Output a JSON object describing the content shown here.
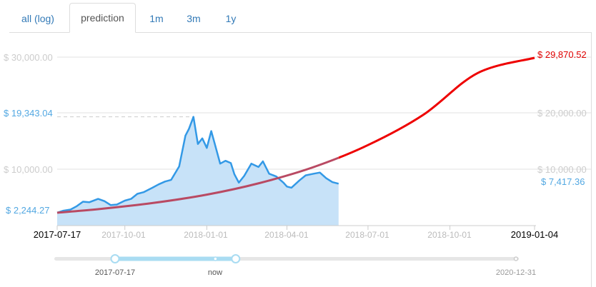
{
  "tabs": [
    {
      "label": "all (log)",
      "active": false
    },
    {
      "label": "prediction",
      "active": true
    },
    {
      "label": "1m",
      "active": false
    },
    {
      "label": "3m",
      "active": false
    },
    {
      "label": "1y",
      "active": false
    }
  ],
  "colors": {
    "accent": "#337ab7",
    "price_line": "#3399e6",
    "price_fill": "#c7e2f8",
    "prediction_line": "#ee0000",
    "prediction_overlap": "#b94a63",
    "max_dash": "#cccccc"
  },
  "chart_data": {
    "type": "line",
    "x_axis": {
      "ticks": [
        "2017-07-17",
        "2017-10-01",
        "2018-01-01",
        "2018-04-01",
        "2018-07-01",
        "2018-10-01",
        "2019-01-04"
      ],
      "range": [
        "2017-07-17",
        "2019-01-04"
      ]
    },
    "y_axis": {
      "left_ticks": [
        "$ 30,000.00",
        "$ 10,000.00"
      ],
      "right_ticks": [
        "$ 20,000.00",
        "$ 10,000.00"
      ],
      "range": [
        0,
        32000
      ]
    },
    "annotations": {
      "max_value": "$ 19,343.04",
      "start_value": "$ 2,244.27",
      "current_value": "$ 7,417.36",
      "prediction_end": "$ 29,870.52"
    },
    "series": [
      {
        "type": "area",
        "x": [
          "2017-07-17",
          "2017-07-24",
          "2017-08-01",
          "2017-08-08",
          "2017-08-15",
          "2017-08-22",
          "2017-09-01",
          "2017-09-08",
          "2017-09-15",
          "2017-09-22",
          "2017-10-01",
          "2017-10-08",
          "2017-10-15",
          "2017-10-22",
          "2017-11-01",
          "2017-11-08",
          "2017-11-15",
          "2017-11-22",
          "2017-12-01",
          "2017-12-08",
          "2017-12-12",
          "2017-12-17",
          "2017-12-22",
          "2017-12-27",
          "2018-01-01",
          "2018-01-06",
          "2018-01-10",
          "2018-01-16",
          "2018-01-22",
          "2018-01-28",
          "2018-02-01",
          "2018-02-06",
          "2018-02-12",
          "2018-02-20",
          "2018-02-28",
          "2018-03-05",
          "2018-03-12",
          "2018-03-20",
          "2018-03-28",
          "2018-04-01",
          "2018-04-06",
          "2018-04-15",
          "2018-04-22",
          "2018-05-01",
          "2018-05-08",
          "2018-05-15",
          "2018-05-22",
          "2018-05-29"
        ],
        "values": [
          2244,
          2600,
          2800,
          3400,
          4200,
          4100,
          4700,
          4300,
          3600,
          3700,
          4400,
          4700,
          5600,
          5900,
          6700,
          7300,
          7800,
          8100,
          10500,
          16000,
          17200,
          19343,
          14500,
          15500,
          13800,
          16800,
          14500,
          11000,
          11500,
          11100,
          9100,
          7600,
          8800,
          11000,
          10400,
          11400,
          9200,
          8700,
          7600,
          6900,
          6700,
          8000,
          8900,
          9200,
          9400,
          8400,
          7700,
          7417
        ]
      },
      {
        "type": "line",
        "x": [
          "2017-07-17",
          "2017-09-01",
          "2017-11-01",
          "2018-01-01",
          "2018-03-01",
          "2018-05-01",
          "2018-07-01",
          "2018-09-01",
          "2018-11-01",
          "2019-01-04"
        ],
        "values": [
          2244,
          2870,
          3960,
          5460,
          7520,
          10380,
          14300,
          19700,
          27150,
          29871
        ]
      }
    ]
  },
  "navigator": {
    "start_label": "2017-07-17",
    "now_label": "now",
    "end_label": "2020-12-31",
    "range_start": "2017-07-17",
    "range_end": "2020-12-31",
    "selected_start": "2017-07-17",
    "selected_end": "2018-08-01",
    "now": "2018-05-29"
  }
}
